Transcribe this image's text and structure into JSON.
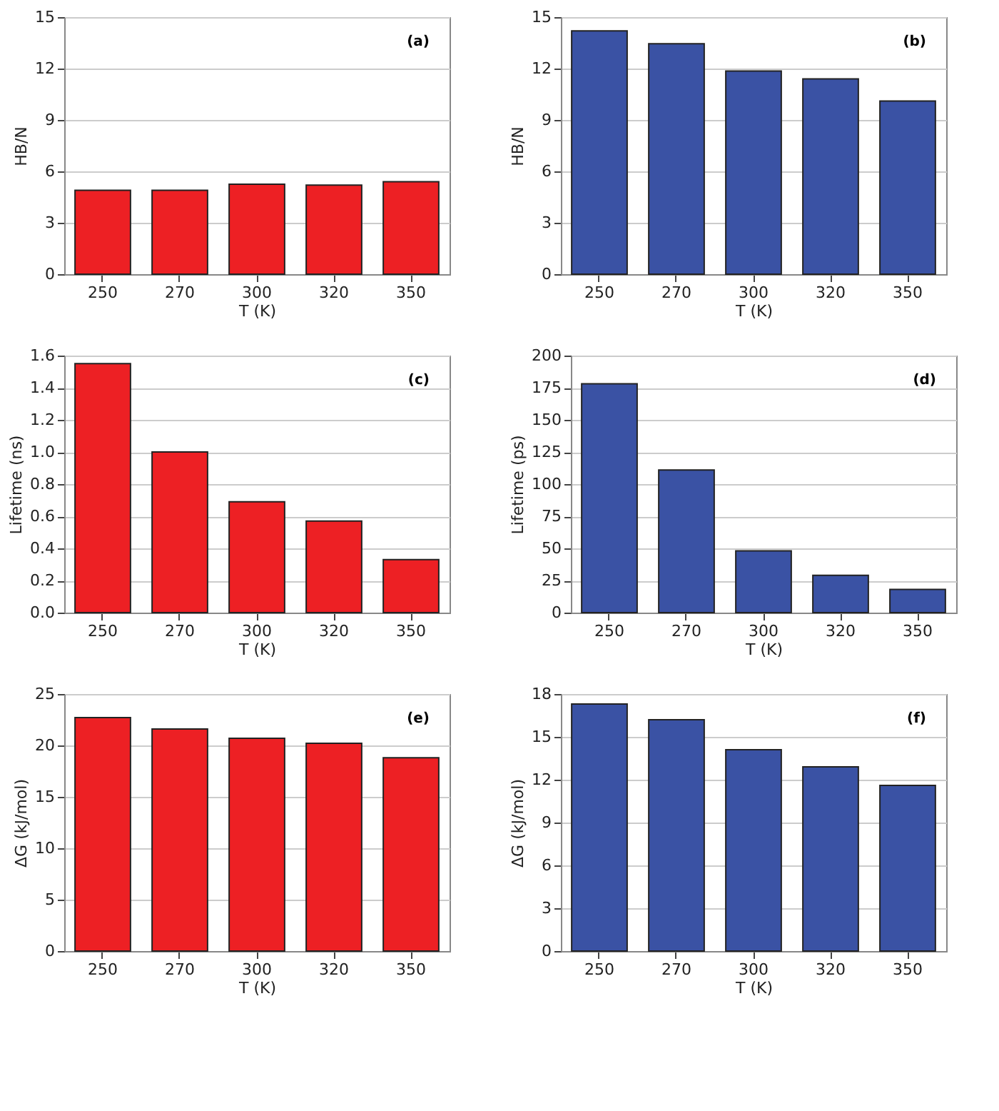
{
  "chart_data": [
    {
      "type": "bar",
      "categories": [
        "250",
        "270",
        "300",
        "320",
        "350"
      ],
      "values": [
        4.9,
        4.9,
        5.25,
        5.2,
        5.4
      ],
      "color": "#ed2024",
      "xlabel": "T (K)",
      "ylabel": "HB/N",
      "ylim": [
        0,
        15
      ],
      "yticks": [
        0,
        3,
        6,
        9,
        12,
        15
      ],
      "grid": "y",
      "annotations": [
        "(a)"
      ]
    },
    {
      "type": "bar",
      "categories": [
        "250",
        "270",
        "300",
        "320",
        "350"
      ],
      "values": [
        14.2,
        13.45,
        11.85,
        11.4,
        10.1
      ],
      "color": "#3a52a4",
      "xlabel": "T (K)",
      "ylabel": "HB/N",
      "ylim": [
        0,
        15
      ],
      "yticks": [
        0,
        3,
        6,
        9,
        12,
        15
      ],
      "grid": "y",
      "annotations": [
        "(b)"
      ]
    },
    {
      "type": "bar",
      "categories": [
        "250",
        "270",
        "300",
        "320",
        "350"
      ],
      "values": [
        1.55,
        1.0,
        0.69,
        0.57,
        0.33
      ],
      "color": "#ed2024",
      "xlabel": "T (K)",
      "ylabel": "Lifetime (ns)",
      "ylim": [
        0,
        1.6
      ],
      "yticks": [
        {
          "value": 0,
          "label": "0.0"
        },
        0.2,
        0.4,
        0.6,
        0.8,
        {
          "value": 1,
          "label": "1.0"
        },
        1.2,
        1.4,
        1.6
      ],
      "grid": "y",
      "annotations": [
        "(c)"
      ]
    },
    {
      "type": "bar",
      "categories": [
        "250",
        "270",
        "300",
        "320",
        "350"
      ],
      "values": [
        178,
        111,
        48,
        29,
        18
      ],
      "color": "#3a52a4",
      "xlabel": "T (K)",
      "ylabel": "Lifetime (ps)",
      "ylim": [
        0,
        200
      ],
      "yticks": [
        0,
        25,
        50,
        75,
        100,
        125,
        150,
        175,
        200
      ],
      "grid": "y",
      "annotations": [
        "(d)"
      ]
    },
    {
      "type": "bar",
      "categories": [
        "250",
        "270",
        "300",
        "320",
        "350"
      ],
      "values": [
        22.7,
        21.6,
        20.7,
        20.2,
        18.8
      ],
      "color": "#ed2024",
      "xlabel": "T (K)",
      "ylabel": "ΔG (kJ/mol)",
      "ylim": [
        0,
        25
      ],
      "yticks": [
        0,
        5,
        10,
        15,
        20,
        25
      ],
      "grid": "y",
      "annotations": [
        "(e)"
      ]
    },
    {
      "type": "bar",
      "categories": [
        "250",
        "270",
        "300",
        "320",
        "350"
      ],
      "values": [
        17.3,
        16.2,
        14.1,
        12.9,
        11.6
      ],
      "color": "#3a52a4",
      "xlabel": "T (K)",
      "ylabel": "ΔG (kJ/mol)",
      "ylim": [
        0,
        18
      ],
      "yticks": [
        0,
        3,
        6,
        9,
        12,
        15,
        18
      ],
      "grid": "y",
      "annotations": [
        "(f)"
      ]
    }
  ]
}
